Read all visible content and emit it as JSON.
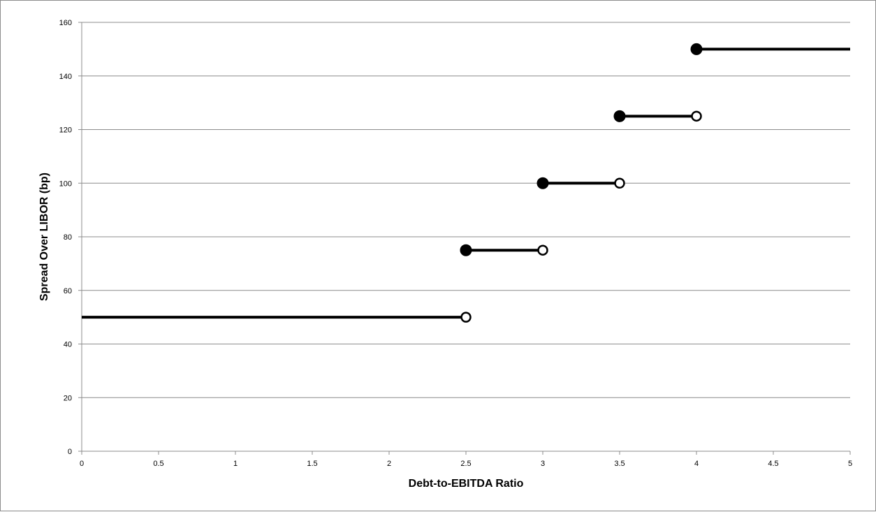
{
  "chart_data": {
    "type": "line",
    "title": "",
    "xlabel": "Debt-to-EBITDA Ratio",
    "ylabel": "Spread Over LIBOR (bp)",
    "xlim": [
      0,
      5
    ],
    "ylim": [
      0,
      160
    ],
    "x_ticks": [
      "0",
      "0.5",
      "1",
      "1.5",
      "2",
      "2.5",
      "3",
      "3.5",
      "4",
      "4.5",
      "5"
    ],
    "y_ticks": [
      "0",
      "20",
      "40",
      "60",
      "80",
      "100",
      "120",
      "140",
      "160"
    ],
    "grid": true,
    "legend": "none",
    "line_color": "#000000",
    "segments": [
      {
        "x_start": 0,
        "x_end": 2.5,
        "y": 50,
        "start_marker": "none",
        "end_marker": "open"
      },
      {
        "x_start": 2.5,
        "x_end": 3.0,
        "y": 75,
        "start_marker": "filled",
        "end_marker": "open"
      },
      {
        "x_start": 3.0,
        "x_end": 3.5,
        "y": 100,
        "start_marker": "filled",
        "end_marker": "open"
      },
      {
        "x_start": 3.5,
        "x_end": 4.0,
        "y": 125,
        "start_marker": "filled",
        "end_marker": "open"
      },
      {
        "x_start": 4.0,
        "x_end": 5.0,
        "y": 150,
        "start_marker": "filled",
        "end_marker": "none"
      }
    ]
  }
}
